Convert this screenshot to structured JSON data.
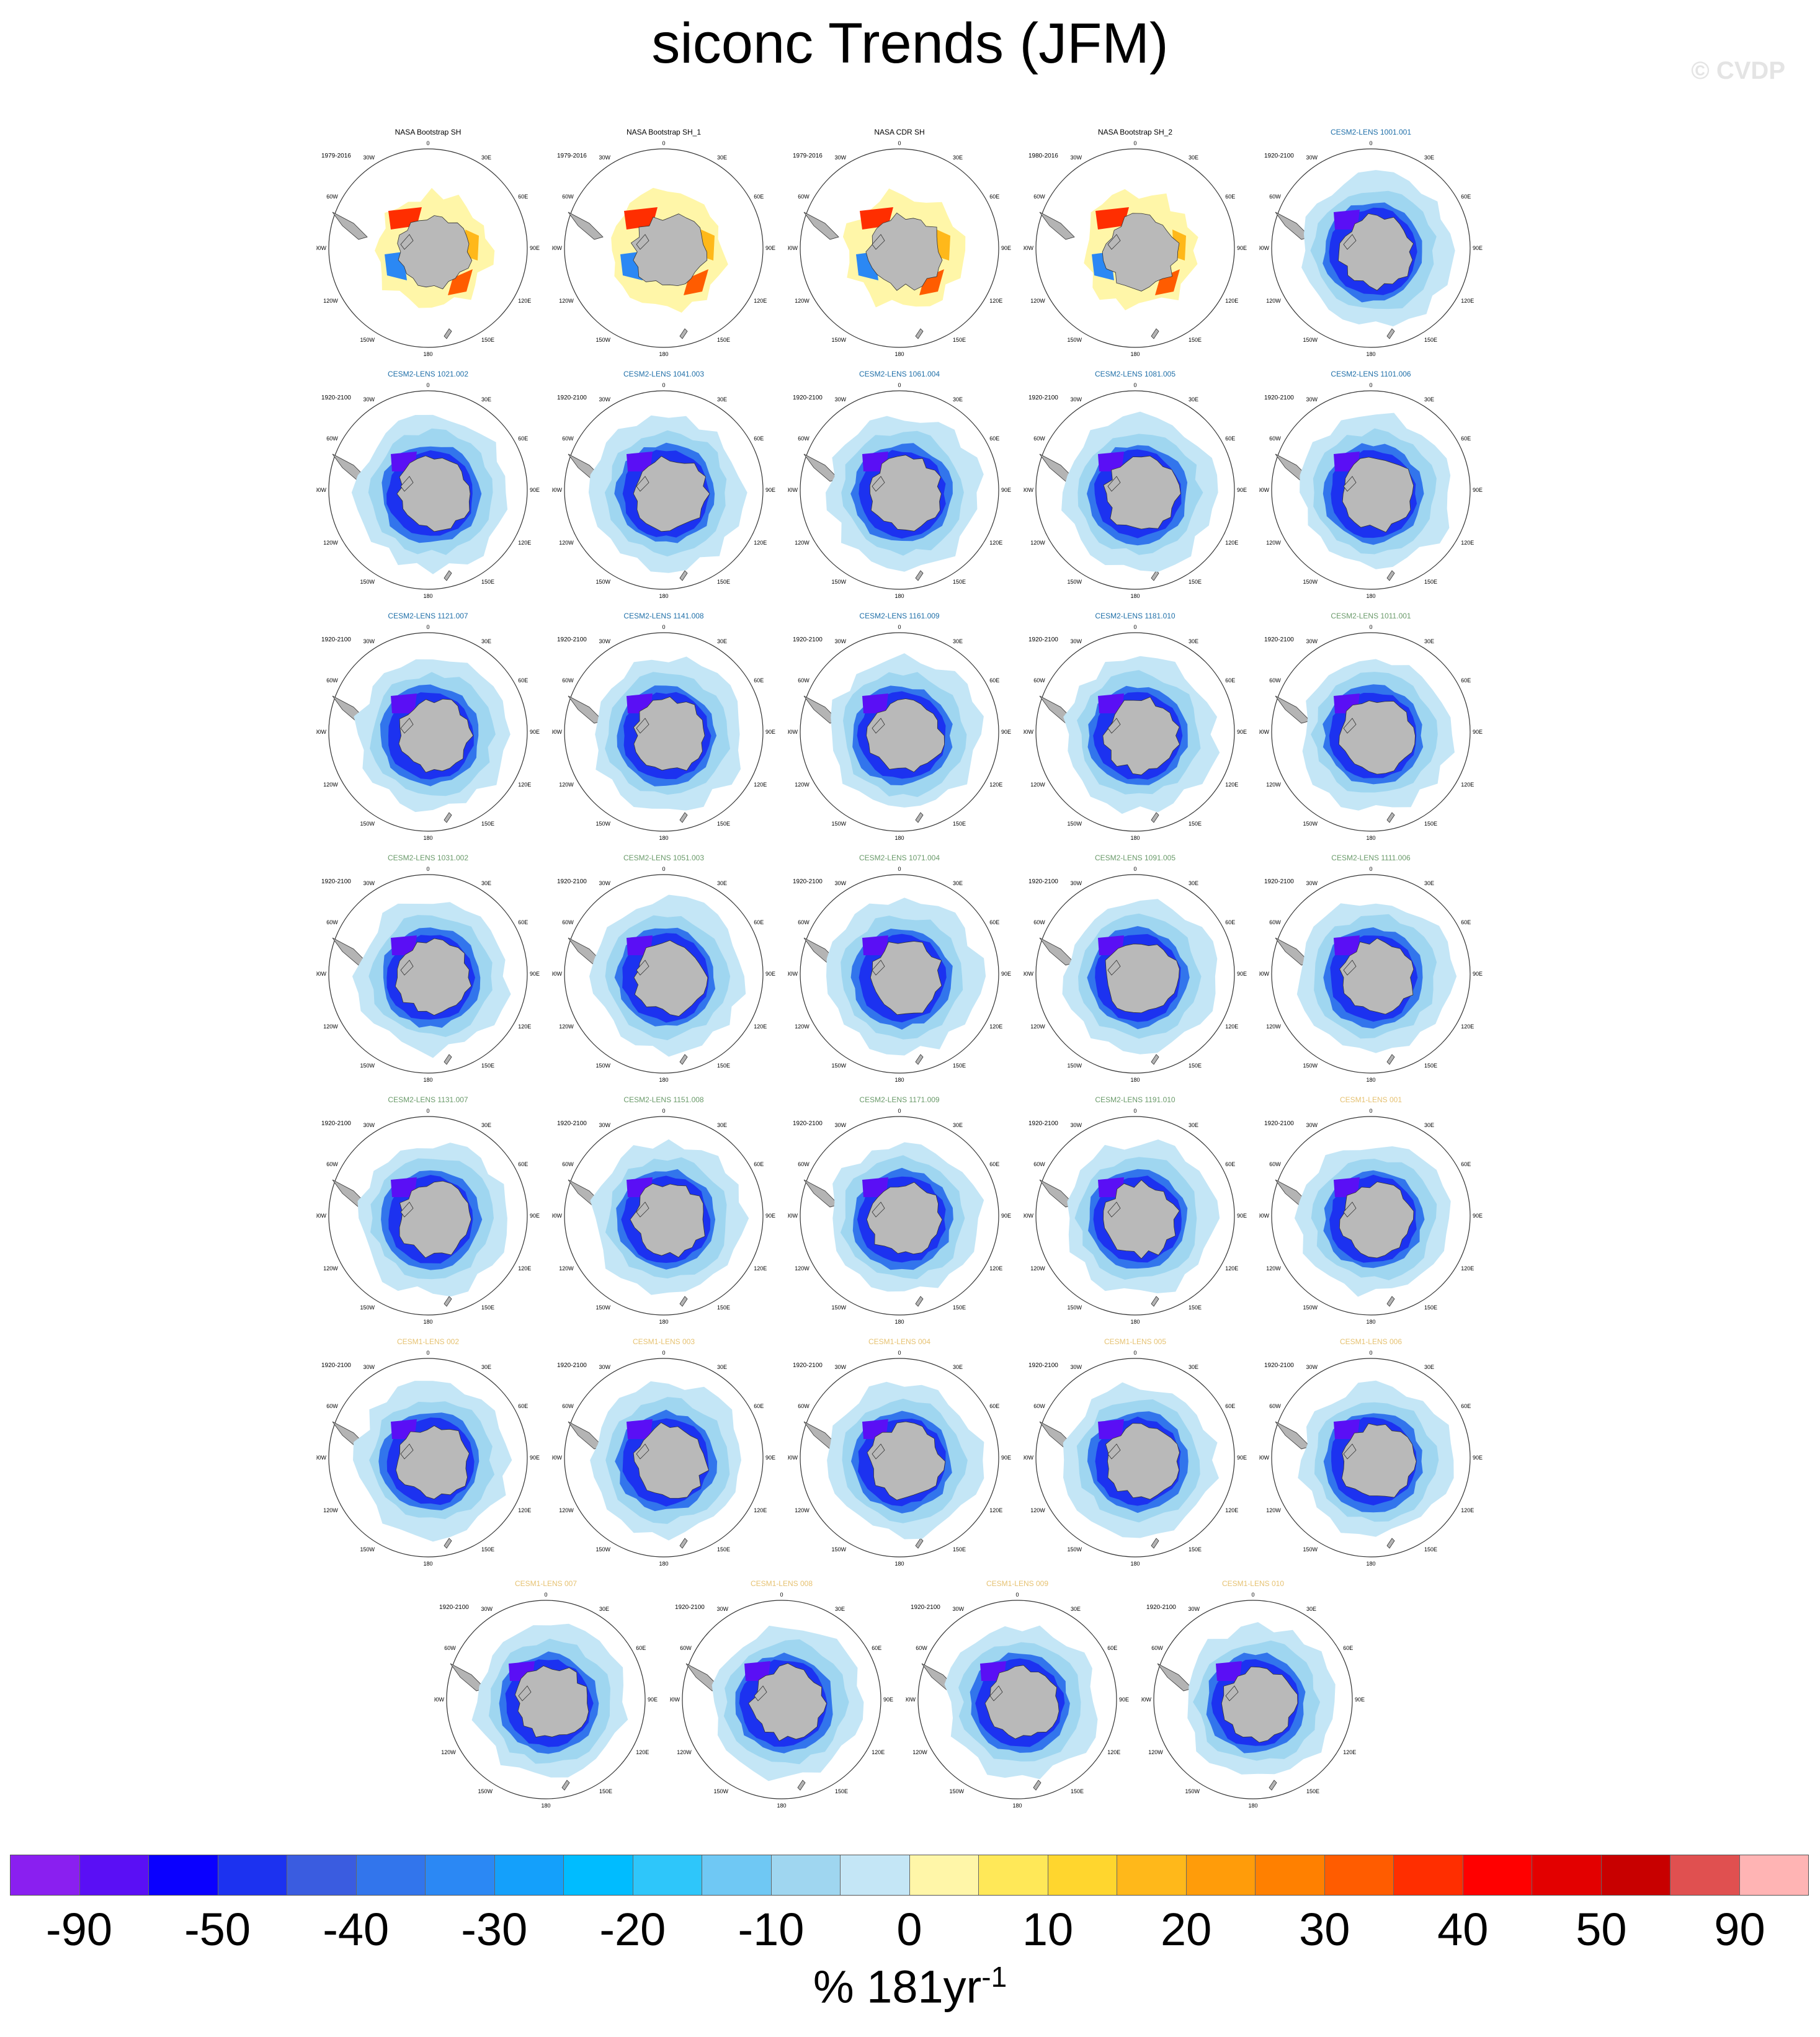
{
  "title": "siconc Trends (JFM)",
  "watermark": "© CVDP",
  "colorbar": {
    "colors": [
      "#8a1ff0",
      "#5a0ff5",
      "#0a00ff",
      "#1c32f0",
      "#3a5ce0",
      "#3275ec",
      "#2b88f4",
      "#14a0fb",
      "#00bcff",
      "#2ec6fa",
      "#6fc8f4",
      "#9fd6f0",
      "#c4e6f6",
      "#fff6a8",
      "#ffe858",
      "#ffd62e",
      "#ffb81a",
      "#ff9c0a",
      "#ff8000",
      "#ff5c00",
      "#ff2e00",
      "#ff0000",
      "#e30000",
      "#c80000",
      "#e05050",
      "#ffb4b4"
    ],
    "tick_labels": [
      "-90",
      "-50",
      "-40",
      "-30",
      "-20",
      "-10",
      "0",
      "10",
      "20",
      "30",
      "40",
      "50",
      "90"
    ],
    "units_text": "% 181yr",
    "units_exp": "-1"
  },
  "map_labels": {
    "top": "0",
    "top_right": "30E",
    "top_left": "30W",
    "upper_right": "60E",
    "upper_left": "60W",
    "right": "90E",
    "left": "90W",
    "lower_right": "120E",
    "lower_left": "120W",
    "bottom_right": "150E",
    "bottom_left": "150W",
    "bottom": "180"
  },
  "chart_data": {
    "type": "heatmap",
    "title": "siconc Trends (JFM)",
    "colorbar_label": "% 181yr^-1",
    "colorbar_ticks": [
      -90,
      -50,
      -40,
      -30,
      -20,
      -10,
      0,
      10,
      20,
      30,
      40,
      50,
      90
    ],
    "panels": [
      {
        "name": "NASA Bootstrap SH",
        "period": "1979-2016",
        "title_color": "#000000",
        "pattern": "obs"
      },
      {
        "name": "NASA Bootstrap SH_1",
        "period": "1979-2016",
        "title_color": "#000000",
        "pattern": "obs"
      },
      {
        "name": "NASA CDR SH",
        "period": "1979-2016",
        "title_color": "#000000",
        "pattern": "obs"
      },
      {
        "name": "NASA Bootstrap SH_2",
        "period": "1980-2016",
        "title_color": "#000000",
        "pattern": "obs"
      },
      {
        "name": "CESM2-LENS 1001.001",
        "period": "1920-2100",
        "title_color": "#1f6fa8",
        "pattern": "model"
      },
      {
        "name": "CESM2-LENS 1021.002",
        "period": "1920-2100",
        "title_color": "#1f6fa8",
        "pattern": "model"
      },
      {
        "name": "CESM2-LENS 1041.003",
        "period": "1920-2100",
        "title_color": "#1f6fa8",
        "pattern": "model"
      },
      {
        "name": "CESM2-LENS 1061.004",
        "period": "1920-2100",
        "title_color": "#1f6fa8",
        "pattern": "model"
      },
      {
        "name": "CESM2-LENS 1081.005",
        "period": "1920-2100",
        "title_color": "#1f6fa8",
        "pattern": "model"
      },
      {
        "name": "CESM2-LENS 1101.006",
        "period": "1920-2100",
        "title_color": "#1f6fa8",
        "pattern": "model"
      },
      {
        "name": "CESM2-LENS 1121.007",
        "period": "1920-2100",
        "title_color": "#1f6fa8",
        "pattern": "model"
      },
      {
        "name": "CESM2-LENS 1141.008",
        "period": "1920-2100",
        "title_color": "#1f6fa8",
        "pattern": "model"
      },
      {
        "name": "CESM2-LENS 1161.009",
        "period": "1920-2100",
        "title_color": "#1f6fa8",
        "pattern": "model"
      },
      {
        "name": "CESM2-LENS 1181.010",
        "period": "1920-2100",
        "title_color": "#1f6fa8",
        "pattern": "model"
      },
      {
        "name": "CESM2-LENS 1011.001",
        "period": "1920-2100",
        "title_color": "#6a9a6a",
        "pattern": "model"
      },
      {
        "name": "CESM2-LENS 1031.002",
        "period": "1920-2100",
        "title_color": "#6a9a6a",
        "pattern": "model"
      },
      {
        "name": "CESM2-LENS 1051.003",
        "period": "1920-2100",
        "title_color": "#6a9a6a",
        "pattern": "model"
      },
      {
        "name": "CESM2-LENS 1071.004",
        "period": "1920-2100",
        "title_color": "#6a9a6a",
        "pattern": "model"
      },
      {
        "name": "CESM2-LENS 1091.005",
        "period": "1920-2100",
        "title_color": "#6a9a6a",
        "pattern": "model"
      },
      {
        "name": "CESM2-LENS 1111.006",
        "period": "1920-2100",
        "title_color": "#6a9a6a",
        "pattern": "model"
      },
      {
        "name": "CESM2-LENS 1131.007",
        "period": "1920-2100",
        "title_color": "#6a9a6a",
        "pattern": "model"
      },
      {
        "name": "CESM2-LENS 1151.008",
        "period": "1920-2100",
        "title_color": "#6a9a6a",
        "pattern": "model"
      },
      {
        "name": "CESM2-LENS 1171.009",
        "period": "1920-2100",
        "title_color": "#6a9a6a",
        "pattern": "model"
      },
      {
        "name": "CESM2-LENS 1191.010",
        "period": "1920-2100",
        "title_color": "#6a9a6a",
        "pattern": "model"
      },
      {
        "name": "CESM1-LENS 001",
        "period": "1920-2100",
        "title_color": "#e6c272",
        "pattern": "model"
      },
      {
        "name": "CESM1-LENS 002",
        "period": "1920-2100",
        "title_color": "#e6c272",
        "pattern": "model"
      },
      {
        "name": "CESM1-LENS 003",
        "period": "1920-2100",
        "title_color": "#e6c272",
        "pattern": "model"
      },
      {
        "name": "CESM1-LENS 004",
        "period": "1920-2100",
        "title_color": "#e6c272",
        "pattern": "model"
      },
      {
        "name": "CESM1-LENS 005",
        "period": "1920-2100",
        "title_color": "#e6c272",
        "pattern": "model"
      },
      {
        "name": "CESM1-LENS 006",
        "period": "1920-2100",
        "title_color": "#e6c272",
        "pattern": "model"
      },
      {
        "name": "CESM1-LENS 007",
        "period": "1920-2100",
        "title_color": "#e6c272",
        "pattern": "model"
      },
      {
        "name": "CESM1-LENS 008",
        "period": "1920-2100",
        "title_color": "#e6c272",
        "pattern": "model"
      },
      {
        "name": "CESM1-LENS 009",
        "period": "1920-2100",
        "title_color": "#e6c272",
        "pattern": "model"
      },
      {
        "name": "CESM1-LENS 010",
        "period": "1920-2100",
        "title_color": "#e6c272",
        "pattern": "model"
      }
    ]
  }
}
